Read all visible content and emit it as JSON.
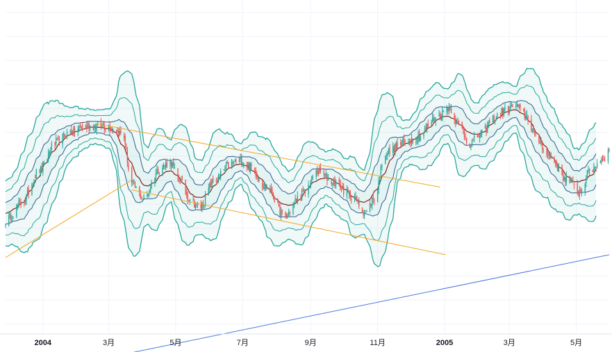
{
  "chart_data": {
    "type": "candlestick",
    "title": "",
    "xlabel": "",
    "ylabel": "",
    "grid": true,
    "legend": "none",
    "x_range": [
      "2003-11-28",
      "2005-05-31"
    ],
    "y_range": [
      0,
      100
    ],
    "x_ticks": [
      {
        "date": "2004-01-01",
        "label": "2004",
        "year": true
      },
      {
        "date": "2004-03-01",
        "label": "3月",
        "year": false
      },
      {
        "date": "2004-05-01",
        "label": "5月",
        "year": false
      },
      {
        "date": "2004-07-01",
        "label": "7月",
        "year": false
      },
      {
        "date": "2004-09-01",
        "label": "9月",
        "year": false
      },
      {
        "date": "2004-11-01",
        "label": "11月",
        "year": false
      },
      {
        "date": "2005-01-01",
        "label": "2005",
        "year": true
      },
      {
        "date": "2005-03-01",
        "label": "3月",
        "year": false
      },
      {
        "date": "2005-05-01",
        "label": "5月",
        "year": false
      }
    ],
    "price_path": [
      [
        "2003-11-28",
        30.0
      ],
      [
        "2003-12-12",
        36.0
      ],
      [
        "2003-12-29",
        48.0
      ],
      [
        "2004-01-12",
        57.5
      ],
      [
        "2004-01-26",
        61.5
      ],
      [
        "2004-02-09",
        63.5
      ],
      [
        "2004-02-23",
        63.8
      ],
      [
        "2004-03-05",
        63.0
      ],
      [
        "2004-03-14",
        60.5
      ],
      [
        "2004-03-22",
        43.0
      ],
      [
        "2004-04-02",
        38.0
      ],
      [
        "2004-04-16",
        48.5
      ],
      [
        "2004-04-26",
        51.0
      ],
      [
        "2004-05-04",
        44.5
      ],
      [
        "2004-05-14",
        38.0
      ],
      [
        "2004-05-22",
        34.5
      ],
      [
        "2004-06-05",
        44.0
      ],
      [
        "2004-06-19",
        50.0
      ],
      [
        "2004-06-29",
        51.5
      ],
      [
        "2004-07-08",
        49.0
      ],
      [
        "2004-07-24",
        41.5
      ],
      [
        "2004-08-08",
        31.5
      ],
      [
        "2004-08-24",
        39.5
      ],
      [
        "2004-09-08",
        47.5
      ],
      [
        "2004-09-21",
        44.0
      ],
      [
        "2004-10-08",
        39.0
      ],
      [
        "2004-10-21",
        33.0
      ],
      [
        "2004-10-29",
        38.0
      ],
      [
        "2004-11-08",
        54.0
      ],
      [
        "2004-11-24",
        57.5
      ],
      [
        "2004-12-08",
        60.0
      ],
      [
        "2004-12-24",
        66.5
      ],
      [
        "2005-01-05",
        70.5
      ],
      [
        "2005-01-14",
        64.0
      ],
      [
        "2005-01-24",
        57.5
      ],
      [
        "2005-02-04",
        61.0
      ],
      [
        "2005-02-14",
        66.0
      ],
      [
        "2005-02-24",
        69.0
      ],
      [
        "2005-03-06",
        71.0
      ],
      [
        "2005-03-16",
        67.5
      ],
      [
        "2005-03-26",
        59.0
      ],
      [
        "2005-04-08",
        52.5
      ],
      [
        "2005-04-21",
        45.0
      ],
      [
        "2005-05-04",
        40.5
      ],
      [
        "2005-05-14",
        48.0
      ],
      [
        "2005-05-24",
        52.0
      ],
      [
        "2005-05-31",
        54.5
      ]
    ],
    "trend_lines": [
      {
        "name": "",
        "color": "#f6a623",
        "points": [
          [
            "2004-02-18",
            64.5
          ],
          [
            "2004-12-28",
            42.0
          ]
        ]
      },
      {
        "name": "",
        "color": "#f6a623",
        "points": [
          [
            "2004-03-22",
            41.0
          ],
          [
            "2005-01-02",
            18.0
          ]
        ]
      },
      {
        "name": "",
        "color": "#f6a623",
        "points": [
          [
            "2003-11-28",
            17.0
          ],
          [
            "2004-03-22",
            44.5
          ]
        ]
      },
      {
        "name": "",
        "color": "#4a78e0",
        "points": [
          [
            "2004-02-10",
            -20.0
          ],
          [
            "2005-05-31",
            18.0
          ]
        ]
      }
    ],
    "colors": {
      "up": "#26a69a",
      "down": "#ef5350",
      "band": "#26a69a",
      "band_fill": "#26a69a",
      "inner_band": "#2b5d8f",
      "basis": "#8b1a1a",
      "grid": "#f0f3fa"
    }
  }
}
